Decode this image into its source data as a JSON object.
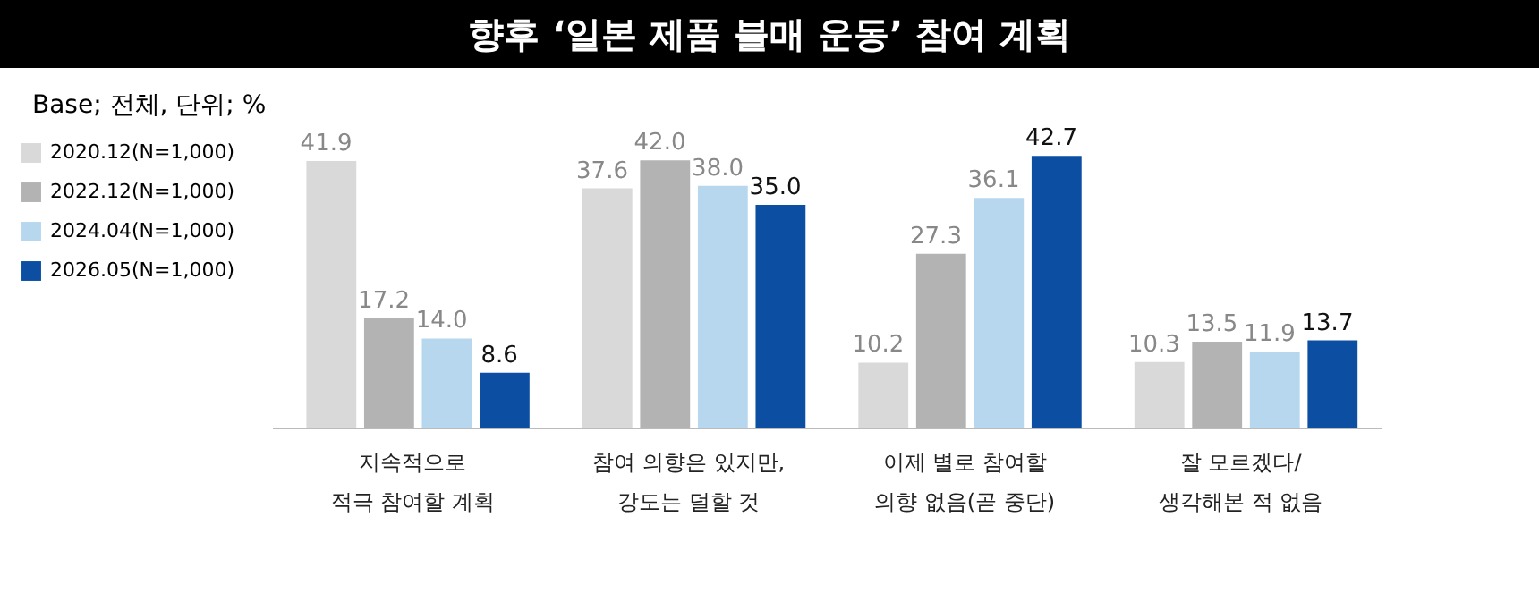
{
  "chart_data": {
    "type": "bar",
    "title": "향후 ‘일본 제품 불매 운동’ 참여 계획",
    "subtitle": "Base; 전체, 단위; %",
    "categories": [
      "지속적으로\n적극 참여할 계획",
      "참여 의향은 있지만,\n강도는 덜할 것",
      "이제 별로 참여할\n의향 없음(곧 중단)",
      "잘 모르겠다/\n생각해본 적 없음"
    ],
    "series": [
      {
        "name": "2020.12(N=1,000)",
        "color": "#d9d9d9",
        "values": [
          41.9,
          37.6,
          10.2,
          10.3
        ],
        "value_labels": [
          "41.9",
          "37.6",
          "10.2",
          "10.3"
        ]
      },
      {
        "name": "2022.12(N=1,000)",
        "color": "#b3b3b3",
        "values": [
          17.2,
          42.0,
          27.3,
          13.5
        ],
        "value_labels": [
          "17.2",
          "42.0",
          "27.3",
          "13.5"
        ]
      },
      {
        "name": "2024.04(N=1,000)",
        "color": "#b7d7ef",
        "values": [
          14.0,
          38.0,
          36.1,
          11.9
        ],
        "value_labels": [
          "14.0",
          "38.0",
          "36.1",
          "11.9"
        ]
      },
      {
        "name": "2026.05(N=1,000)",
        "color": "#0b4ea2",
        "values": [
          8.6,
          35.0,
          42.7,
          13.7
        ],
        "value_labels": [
          "8.6",
          "35.0",
          "42.7",
          "13.7"
        ]
      }
    ],
    "legend": "left",
    "grid": false
  }
}
